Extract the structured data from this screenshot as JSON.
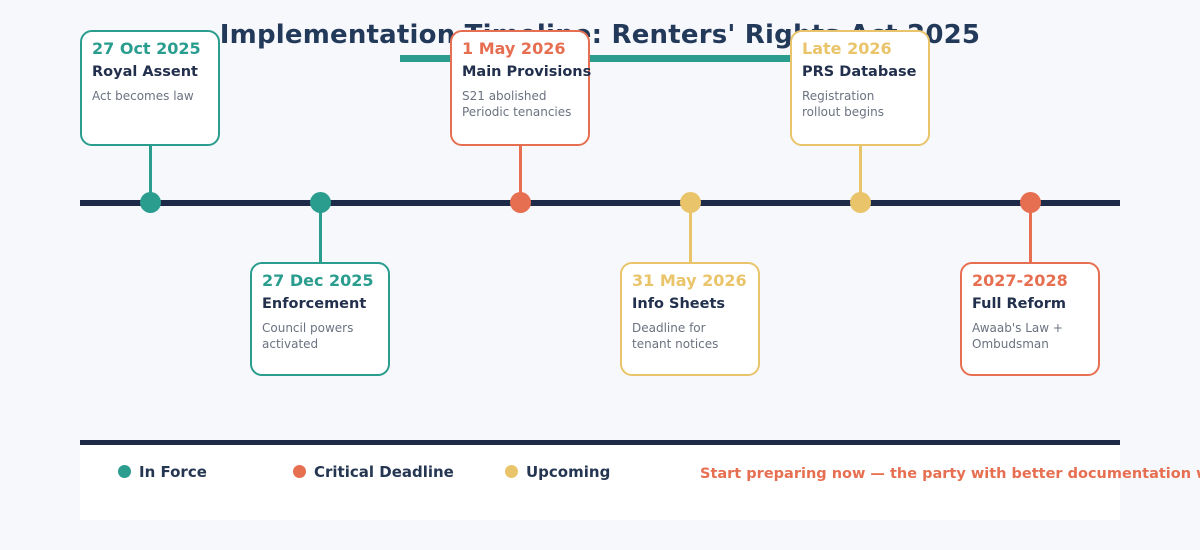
{
  "title": "Implementation Timeline: Renters' Rights Act 2025",
  "colors": {
    "background": "#f7f8fb",
    "card_background": "#ffffff",
    "navy_line": "#1d2b49",
    "heading_text": "#22395a",
    "card_title_text": "#22304d",
    "muted_text": "#6b7280",
    "accent_underline": "#2a9d8f",
    "status": {
      "in-force": "#2a9d8f",
      "critical": "#e76f51",
      "upcoming": "#e9c46a"
    }
  },
  "events": [
    {
      "date": "27 Oct 2025",
      "title": "Royal Assent",
      "description": [
        "Act becomes law"
      ],
      "status": "in-force",
      "position": "above"
    },
    {
      "date": "27 Dec 2025",
      "title": "Enforcement",
      "description": [
        "Council powers",
        "activated"
      ],
      "status": "in-force",
      "position": "below"
    },
    {
      "date": "1 May 2026",
      "title": "Main Provisions",
      "description": [
        "S21 abolished",
        "Periodic tenancies"
      ],
      "status": "critical",
      "position": "above"
    },
    {
      "date": "31 May 2026",
      "title": "Info Sheets",
      "description": [
        "Deadline for",
        "tenant notices"
      ],
      "status": "upcoming",
      "position": "below"
    },
    {
      "date": "Late 2026",
      "title": "PRS Database",
      "description": [
        "Registration",
        "rollout begins"
      ],
      "status": "upcoming",
      "position": "above"
    },
    {
      "date": "2027-2028",
      "title": "Full Reform",
      "description": [
        "Awaab's Law +",
        "Ombudsman"
      ],
      "status": "critical",
      "position": "below"
    }
  ],
  "legend": [
    {
      "label": "In Force",
      "status": "in-force"
    },
    {
      "label": "Critical Deadline",
      "status": "critical"
    },
    {
      "label": "Upcoming",
      "status": "upcoming"
    }
  ],
  "note": "Start preparing now — the party with better documentation wins"
}
